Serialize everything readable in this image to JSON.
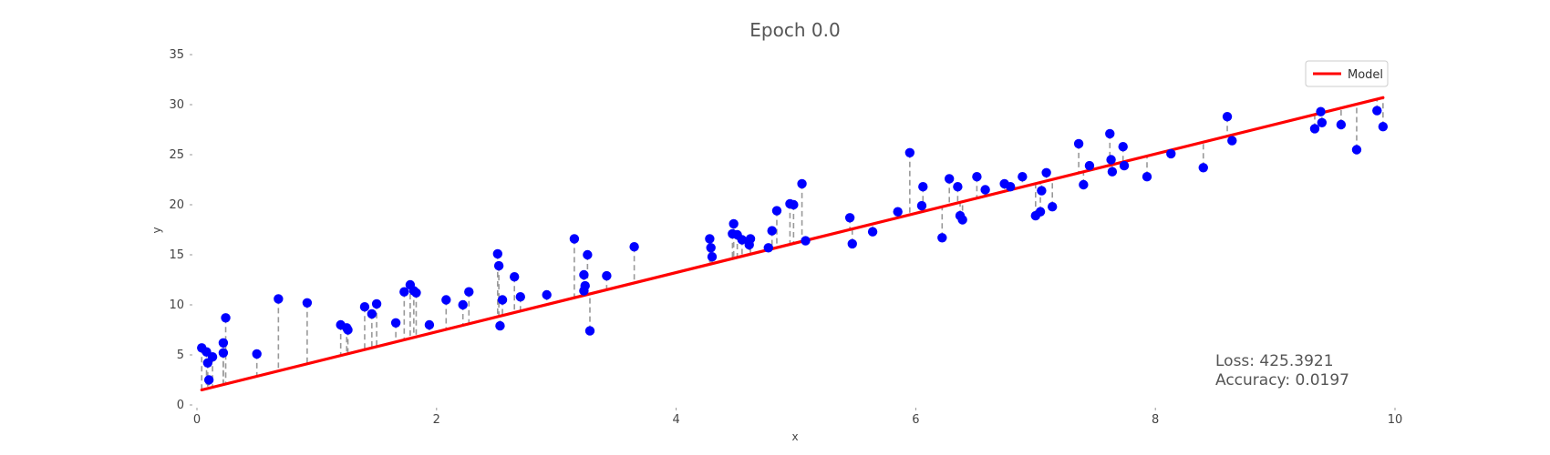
{
  "chart_data": {
    "type": "scatter",
    "title": "Epoch 0.0",
    "xlabel": "x",
    "ylabel": "y",
    "xlim": [
      0,
      10
    ],
    "ylim": [
      0,
      35
    ],
    "xticks": [
      0,
      2,
      4,
      6,
      8,
      10
    ],
    "yticks": [
      0,
      5,
      10,
      15,
      20,
      25,
      30,
      35
    ],
    "grid": false,
    "legend": {
      "position": "top-right",
      "entries": [
        "Model"
      ]
    },
    "colors": {
      "points": "#0000ff",
      "line": "#ff0000",
      "residuals": "#999999"
    },
    "series": [
      {
        "type": "scatter",
        "x": [
          0.04,
          0.08,
          0.1,
          0.09,
          0.13,
          0.22,
          0.24,
          0.22,
          0.5,
          0.68,
          0.92,
          1.2,
          1.26,
          1.25,
          1.4,
          1.46,
          1.5,
          1.66,
          1.73,
          1.78,
          1.83,
          1.81,
          1.94,
          2.08,
          2.22,
          2.27,
          2.51,
          2.52,
          2.55,
          2.53,
          2.65,
          2.7,
          2.92,
          3.15,
          3.23,
          3.24,
          3.26,
          3.23,
          3.28,
          3.42,
          3.65,
          4.28,
          4.29,
          4.3,
          4.47,
          4.48,
          4.51,
          4.55,
          4.61,
          4.62,
          4.77,
          4.8,
          4.84,
          4.95,
          4.98,
          5.05,
          5.08,
          5.45,
          5.47,
          5.64,
          5.85,
          5.95,
          6.05,
          6.06,
          6.22,
          6.28,
          6.35,
          6.37,
          6.39,
          6.51,
          6.58,
          6.74,
          6.79,
          6.89,
          7.0,
          7.04,
          7.05,
          7.09,
          7.14,
          7.36,
          7.4,
          7.45,
          7.62,
          7.63,
          7.64,
          7.73,
          7.74,
          7.93,
          8.13,
          8.4,
          8.6,
          8.64,
          9.33,
          9.38,
          9.39,
          9.55,
          9.68,
          9.85,
          9.9
        ],
        "y": [
          5.7,
          5.3,
          2.5,
          4.2,
          4.8,
          5.2,
          8.7,
          6.2,
          5.1,
          10.6,
          10.2,
          8.0,
          7.5,
          7.7,
          9.8,
          9.1,
          10.1,
          8.2,
          11.3,
          12.0,
          11.2,
          11.4,
          8.0,
          10.5,
          10.0,
          11.3,
          15.1,
          13.9,
          10.5,
          7.9,
          12.8,
          10.8,
          11.0,
          16.6,
          13.0,
          11.9,
          15.0,
          11.4,
          7.4,
          12.9,
          15.8,
          16.6,
          15.7,
          14.8,
          17.1,
          18.1,
          17.0,
          16.5,
          16.0,
          16.6,
          15.7,
          17.4,
          19.4,
          20.1,
          20.0,
          22.1,
          16.4,
          18.7,
          16.1,
          17.3,
          19.3,
          25.2,
          19.9,
          21.8,
          16.7,
          22.6,
          21.8,
          18.9,
          18.5,
          22.8,
          21.5,
          22.1,
          21.8,
          22.8,
          18.9,
          19.3,
          21.4,
          23.2,
          19.8,
          26.1,
          22.0,
          23.9,
          27.1,
          24.5,
          23.3,
          25.8,
          23.9,
          22.8,
          25.1,
          23.7,
          28.8,
          26.4,
          27.6,
          29.3,
          28.2,
          28.0,
          25.5,
          29.4,
          27.8
        ]
      },
      {
        "name": "Model",
        "type": "line",
        "x": [
          0.04,
          9.9
        ],
        "y": [
          1.5,
          30.7
        ]
      }
    ],
    "annotations": [
      "Loss: 425.3921",
      "Accuracy: 0.0197"
    ]
  }
}
